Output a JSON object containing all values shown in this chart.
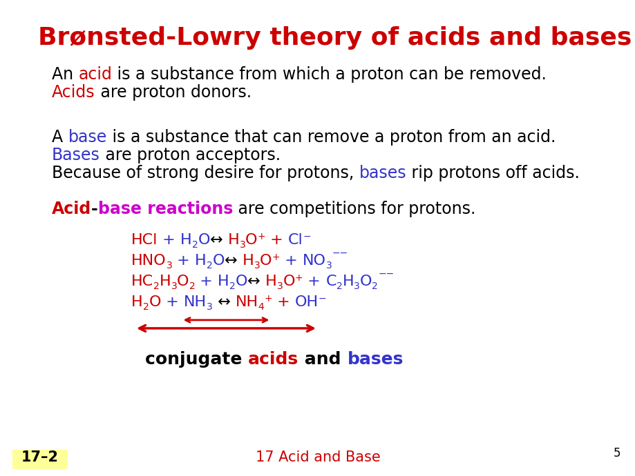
{
  "title": "Brønsted-Lowry theory of acids and bases",
  "title_color": "#cc0000",
  "bg_color": "#ffffff",
  "footer_label": "17–2",
  "footer_bg": "#ffff99",
  "footer_center": "17 Acid and Base",
  "footer_page": "5",
  "red": "#cc0000",
  "blue": "#3333cc",
  "magenta": "#cc00cc",
  "black": "#000000"
}
